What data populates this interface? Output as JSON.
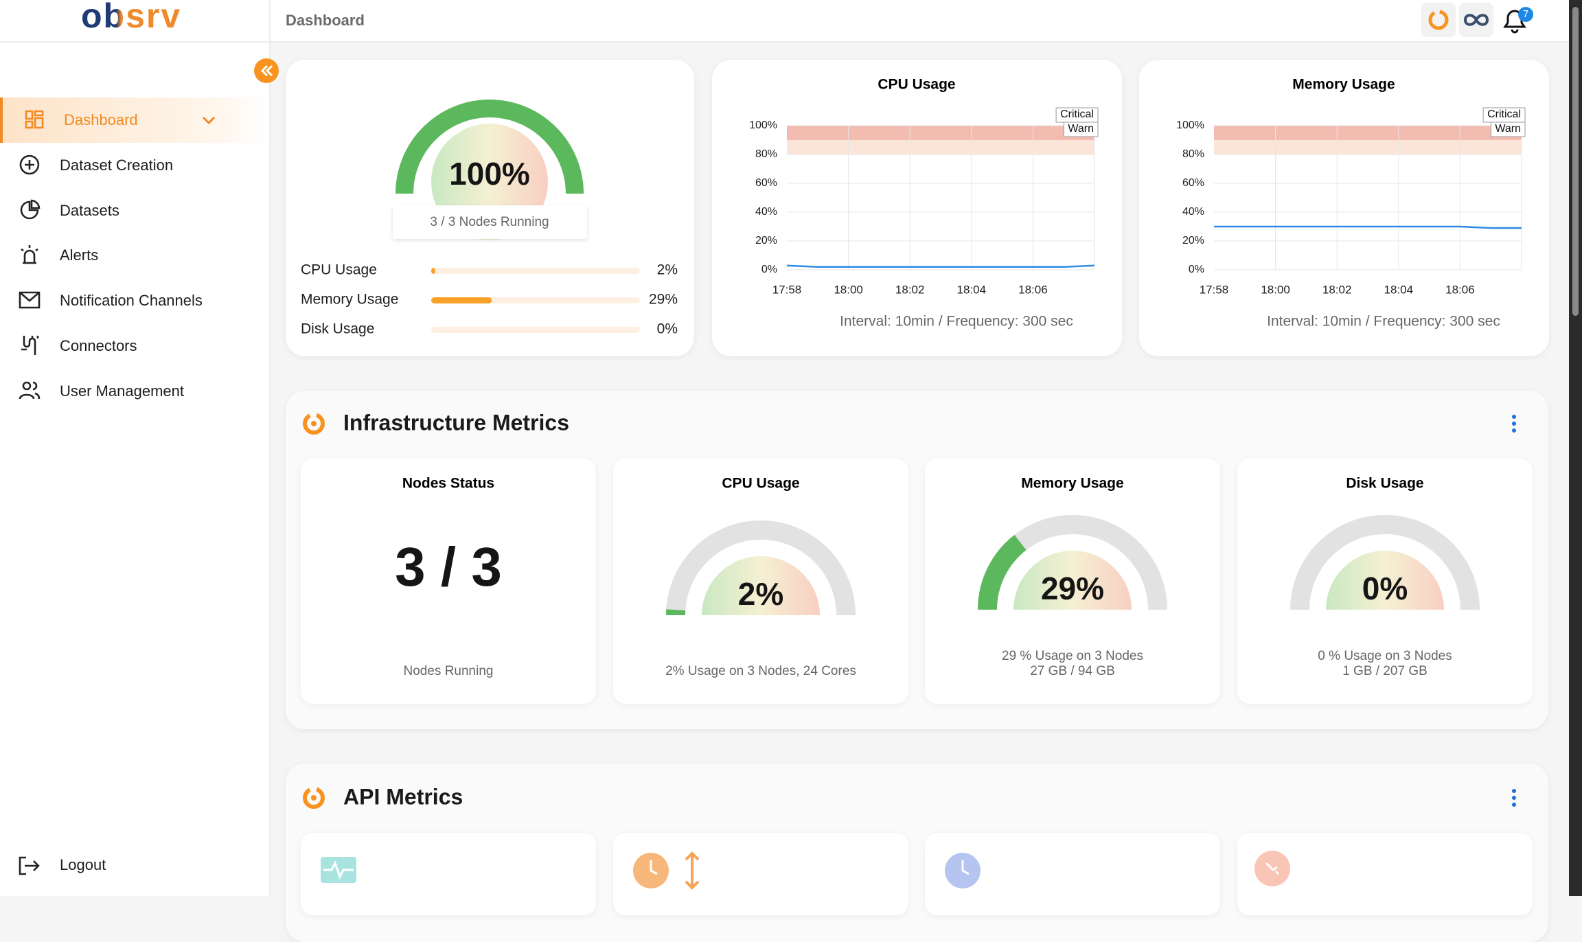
{
  "sidebar": {
    "brand": "obsrv",
    "menu": [
      "Dashboard",
      "Dataset Creation",
      "Datasets",
      "Alerts",
      "Notification Channels",
      "Connectors",
      "User Management"
    ],
    "logout": "Logout"
  },
  "header": {
    "title": "Dashboard",
    "notifications": 7
  },
  "overview": {
    "range": [
      0,
      100
    ],
    "gauge": {
      "value": 100,
      "label": "100%",
      "caption": "3 / 3 Nodes Running"
    },
    "usage": [
      {
        "name": "CPU Usage",
        "value": 2,
        "label": "2%"
      },
      {
        "name": "Memory Usage",
        "value": 29,
        "label": "29%"
      },
      {
        "name": "Disk Usage",
        "value": 0,
        "label": "0%"
      }
    ]
  },
  "chart_data": [
    {
      "type": "line",
      "title": "CPU Usage",
      "categories": [
        "17:58",
        null,
        "18:00",
        null,
        "18:02",
        null,
        "18:04",
        null,
        "18:06",
        null,
        null
      ],
      "series": [
        {
          "color": "#2f8be6",
          "values": [
            3,
            2,
            2,
            2,
            2,
            2,
            2,
            2,
            2,
            2,
            3
          ]
        }
      ],
      "ylim": [
        0,
        100
      ],
      "yticks": [
        {
          "value": 0,
          "label": "0%"
        },
        {
          "value": 20,
          "label": "20%"
        },
        {
          "value": 40,
          "label": "40%"
        },
        {
          "value": 60,
          "label": "60%"
        },
        {
          "value": 80,
          "label": "80%"
        },
        {
          "value": 100,
          "label": "100%"
        }
      ],
      "grid": true,
      "thresholds": [
        {
          "name": "Critical",
          "from": 90,
          "to": 100,
          "color": "#f3bcb0"
        },
        {
          "name": "Warn",
          "from": 80,
          "to": 90,
          "color": "#fbe5d8"
        }
      ],
      "footer": "Interval: 10min / Frequency: 300 sec"
    },
    {
      "type": "line",
      "title": "Memory Usage",
      "categories": [
        "17:58",
        null,
        "18:00",
        null,
        "18:02",
        null,
        "18:04",
        null,
        "18:06",
        null,
        null
      ],
      "series": [
        {
          "color": "#2f8be6",
          "values": [
            30,
            30,
            30,
            30,
            30,
            30,
            30,
            30,
            30,
            29,
            29
          ]
        }
      ],
      "ylim": [
        0,
        100
      ],
      "yticks": [
        {
          "value": 0,
          "label": "0%"
        },
        {
          "value": 20,
          "label": "20%"
        },
        {
          "value": 40,
          "label": "40%"
        },
        {
          "value": 60,
          "label": "60%"
        },
        {
          "value": 80,
          "label": "80%"
        },
        {
          "value": 100,
          "label": "100%"
        }
      ],
      "grid": true,
      "thresholds": [
        {
          "name": "Critical",
          "from": 90,
          "to": 100,
          "color": "#f3bcb0"
        },
        {
          "name": "Warn",
          "from": 80,
          "to": 90,
          "color": "#fbe5d8"
        }
      ],
      "footer": "Interval: 10min / Frequency: 300 sec"
    }
  ],
  "infrastructure": {
    "title": "Infrastructure Metrics",
    "range": [
      0,
      100
    ],
    "nodes": {
      "title": "Nodes Status",
      "value": "3 / 3",
      "caption": "Nodes Running"
    },
    "gauges": [
      {
        "title": "CPU Usage",
        "value": 2,
        "label": "2%",
        "caption": [
          "2% Usage on 3 Nodes, 24 Cores"
        ]
      },
      {
        "title": "Memory Usage",
        "value": 29,
        "label": "29%",
        "caption": [
          "29 % Usage on 3 Nodes",
          "27 GB / 94 GB"
        ]
      },
      {
        "title": "Disk Usage",
        "value": 0,
        "label": "0%",
        "caption": [
          "0 % Usage on 3 Nodes",
          "1 GB / 207 GB"
        ]
      }
    ]
  },
  "api": {
    "title": "API Metrics"
  }
}
